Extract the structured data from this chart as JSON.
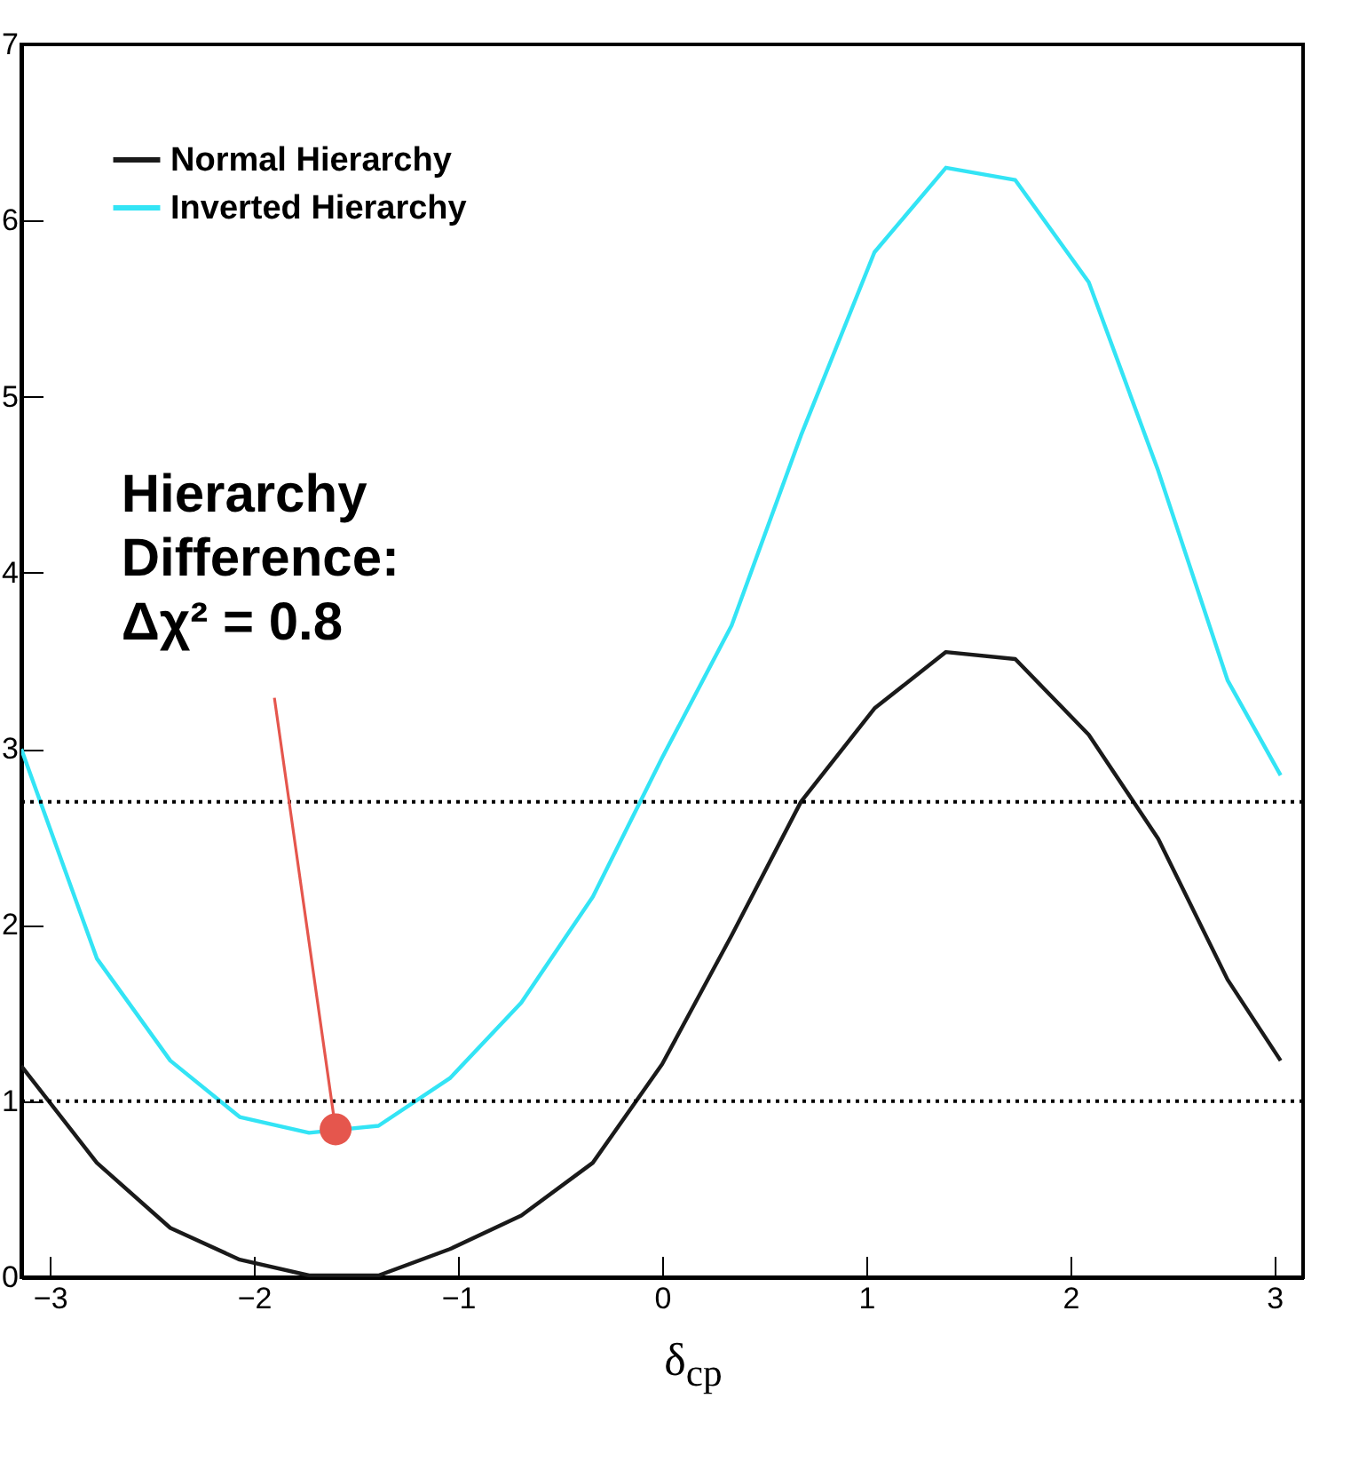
{
  "chart_data": {
    "type": "line",
    "xlabel": "δ$_{cp}$",
    "xlim": [
      -3.14,
      3.14
    ],
    "ylim": [
      0,
      7
    ],
    "xticks": [
      -3,
      -2,
      -1,
      0,
      1,
      2,
      3
    ],
    "yticks": [
      0,
      1,
      2,
      3,
      4,
      5,
      6,
      7
    ],
    "legend": "top left",
    "grid": false,
    "marker": "none",
    "line_style": "solid",
    "series": [
      {
        "name": "Normal Hierarchy",
        "color": "#1a1a1a",
        "x": [
          -3.14,
          -2.77,
          -2.41,
          -2.07,
          -1.73,
          -1.39,
          -1.04,
          -0.69,
          -0.34,
          0,
          0.34,
          0.68,
          1.04,
          1.39,
          1.73,
          2.09,
          2.43,
          2.77,
          3.03
        ],
        "values": [
          1.2,
          0.65,
          0.28,
          0.1,
          0.01,
          0.01,
          0.16,
          0.35,
          0.65,
          1.21,
          1.94,
          2.7,
          3.23,
          3.55,
          3.51,
          3.08,
          2.49,
          1.69,
          1.23
        ]
      },
      {
        "name": "Inverted Hierarchy",
        "color": "#33e4f5",
        "x": [
          -3.14,
          -2.77,
          -2.41,
          -2.07,
          -1.73,
          -1.39,
          -1.04,
          -0.69,
          -0.34,
          0,
          0.34,
          0.68,
          1.04,
          1.39,
          1.73,
          2.09,
          2.43,
          2.77,
          3.03
        ],
        "values": [
          3.0,
          1.81,
          1.23,
          0.91,
          0.82,
          0.86,
          1.13,
          1.56,
          2.16,
          2.95,
          3.7,
          4.78,
          5.82,
          6.3,
          6.23,
          5.65,
          4.58,
          3.39,
          2.85
        ]
      }
    ],
    "ref_lines": [
      {
        "axis": "y",
        "value": 2.7,
        "color": "#000000",
        "line_style": "dotted"
      },
      {
        "axis": "y",
        "value": 1,
        "color": "#000000",
        "line_style": "dotted"
      }
    ],
    "annotations": [
      {
        "text": "Hierarchy Difference: Δχ² = 0.8",
        "x": -1.6,
        "y": 0.84
      }
    ]
  }
}
